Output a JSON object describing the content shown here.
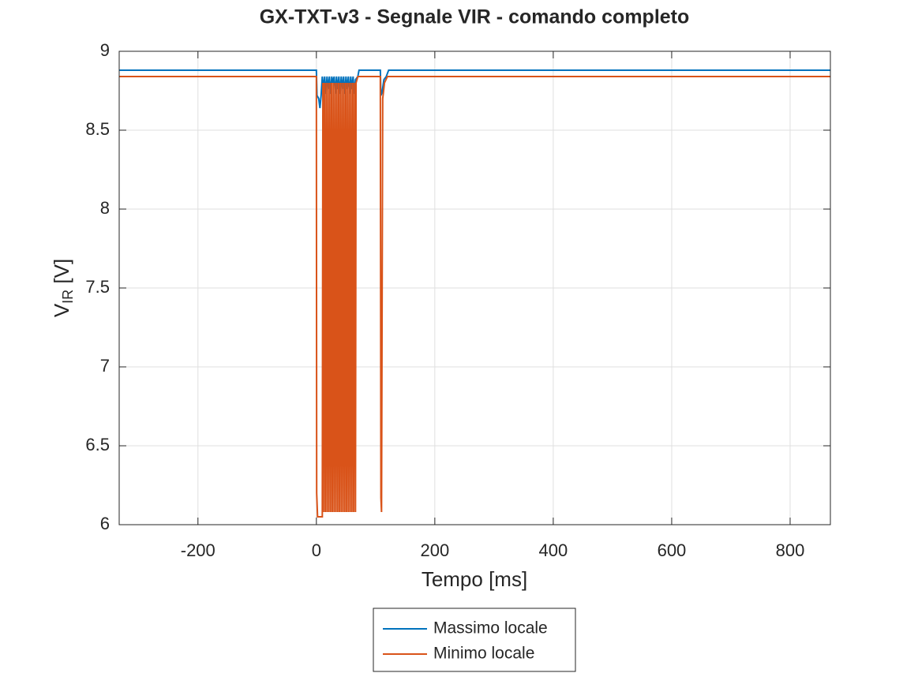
{
  "chart_data": {
    "type": "line",
    "title": "GX-TXT-v3 - Segnale VIR - comando completo",
    "xlabel": "Tempo [ms]",
    "ylabel": {
      "main": "V",
      "sub": "IR",
      "rest": " [V]"
    },
    "xlim": [
      -333,
      868
    ],
    "ylim": [
      6,
      9
    ],
    "xticks": [
      -200,
      0,
      200,
      400,
      600,
      800
    ],
    "yticks": [
      6,
      6.5,
      7,
      7.5,
      8,
      8.5,
      9
    ],
    "grid": true,
    "legend": "bottom",
    "series": [
      {
        "name": "Massimo locale",
        "color": "#0072bd",
        "x": [
          -333,
          0,
          1,
          4,
          6,
          8,
          10,
          12,
          14,
          16,
          18,
          20,
          22,
          24,
          26,
          28,
          30,
          32,
          34,
          36,
          38,
          40,
          42,
          44,
          46,
          48,
          50,
          52,
          54,
          56,
          58,
          60,
          62,
          64,
          66,
          70,
          72,
          108,
          109,
          111,
          114,
          118,
          122,
          868
        ],
        "values": [
          8.88,
          8.88,
          8.72,
          8.7,
          8.64,
          8.72,
          8.84,
          8.76,
          8.84,
          8.73,
          8.84,
          8.76,
          8.84,
          8.73,
          8.84,
          8.8,
          8.84,
          8.73,
          8.84,
          8.76,
          8.84,
          8.73,
          8.84,
          8.76,
          8.84,
          8.73,
          8.84,
          8.76,
          8.84,
          8.73,
          8.84,
          8.76,
          8.84,
          8.73,
          8.82,
          8.84,
          8.88,
          8.88,
          8.72,
          8.74,
          8.82,
          8.84,
          8.88,
          8.88
        ]
      },
      {
        "name": "Minimo locale",
        "color": "#d95319",
        "x": [
          -333,
          0,
          0.5,
          2,
          10,
          11,
          12,
          13.5,
          15,
          16.5,
          18,
          19.5,
          21,
          22.5,
          24,
          25.5,
          27,
          28.5,
          30,
          31.5,
          33,
          34.5,
          36,
          37.5,
          39,
          40.5,
          42,
          43.5,
          45,
          46.5,
          48,
          49.5,
          51,
          52.5,
          54,
          55.5,
          57,
          58.5,
          60,
          61.5,
          63,
          64.5,
          66,
          67,
          70,
          108,
          109,
          110,
          112,
          115,
          120,
          868
        ],
        "values": [
          8.84,
          8.84,
          6.2,
          6.05,
          6.05,
          8.8,
          6.08,
          8.8,
          6.08,
          8.8,
          6.08,
          8.8,
          6.08,
          8.8,
          6.08,
          8.8,
          6.08,
          8.8,
          6.08,
          8.8,
          6.08,
          8.8,
          6.08,
          8.8,
          6.08,
          8.8,
          6.08,
          8.8,
          6.08,
          8.8,
          6.08,
          8.8,
          6.08,
          8.8,
          6.08,
          8.8,
          6.08,
          8.8,
          6.08,
          8.8,
          6.08,
          8.8,
          6.08,
          8.8,
          8.84,
          8.84,
          6.17,
          6.08,
          8.7,
          8.8,
          8.84,
          8.84
        ]
      }
    ]
  }
}
